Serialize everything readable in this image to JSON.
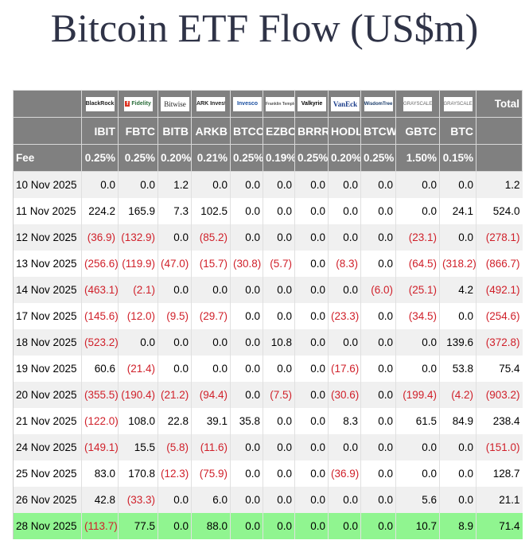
{
  "title": "Bitcoin ETF Flow (US$m)",
  "colors": {
    "header_bg": "#808080",
    "negative": "#d0202a",
    "highlight_row": "#90f590",
    "stripe": "#f0f0f0"
  },
  "issuers": [
    "BlackRock",
    "Fidelity",
    "Bitwise",
    "ARK Invest",
    "Invesco",
    "Franklin Templeton",
    "Valkyrie",
    "VanEck",
    "WisdomTree",
    "Grayscale",
    "Grayscale"
  ],
  "total_label": "Total",
  "fee_label": "Fee",
  "tickers": [
    "IBIT",
    "FBTC",
    "BITB",
    "ARKB",
    "BTCO",
    "EZBC",
    "BRRR",
    "HODL",
    "BTCW",
    "GBTC",
    "BTC"
  ],
  "fees": [
    "0.25%",
    "0.25%",
    "0.20%",
    "0.21%",
    "0.25%",
    "0.19%",
    "0.25%",
    "0.20%",
    "0.25%",
    "1.50%",
    "0.15%"
  ],
  "rows": [
    {
      "date": "10 Nov 2025",
      "values": [
        "0.0",
        "0.0",
        "1.2",
        "0.0",
        "0.0",
        "0.0",
        "0.0",
        "0.0",
        "0.0",
        "0.0",
        "0.0"
      ],
      "total": "1.2"
    },
    {
      "date": "11 Nov 2025",
      "values": [
        "224.2",
        "165.9",
        "7.3",
        "102.5",
        "0.0",
        "0.0",
        "0.0",
        "0.0",
        "0.0",
        "0.0",
        "24.1"
      ],
      "total": "524.0"
    },
    {
      "date": "12 Nov 2025",
      "values": [
        "(36.9)",
        "(132.9)",
        "0.0",
        "(85.2)",
        "0.0",
        "0.0",
        "0.0",
        "0.0",
        "0.0",
        "(23.1)",
        "0.0"
      ],
      "total": "(278.1)"
    },
    {
      "date": "13 Nov 2025",
      "values": [
        "(256.6)",
        "(119.9)",
        "(47.0)",
        "(15.7)",
        "(30.8)",
        "(5.7)",
        "0.0",
        "(8.3)",
        "0.0",
        "(64.5)",
        "(318.2)"
      ],
      "total": "(866.7)"
    },
    {
      "date": "14 Nov 2025",
      "values": [
        "(463.1)",
        "(2.1)",
        "0.0",
        "0.0",
        "0.0",
        "0.0",
        "0.0",
        "0.0",
        "(6.0)",
        "(25.1)",
        "4.2"
      ],
      "total": "(492.1)"
    },
    {
      "date": "17 Nov 2025",
      "values": [
        "(145.6)",
        "(12.0)",
        "(9.5)",
        "(29.7)",
        "0.0",
        "0.0",
        "0.0",
        "(23.3)",
        "0.0",
        "(34.5)",
        "0.0"
      ],
      "total": "(254.6)"
    },
    {
      "date": "18 Nov 2025",
      "values": [
        "(523.2)",
        "0.0",
        "0.0",
        "0.0",
        "0.0",
        "10.8",
        "0.0",
        "0.0",
        "0.0",
        "0.0",
        "139.6"
      ],
      "total": "(372.8)"
    },
    {
      "date": "19 Nov 2025",
      "values": [
        "60.6",
        "(21.4)",
        "0.0",
        "0.0",
        "0.0",
        "0.0",
        "0.0",
        "(17.6)",
        "0.0",
        "0.0",
        "53.8"
      ],
      "total": "75.4"
    },
    {
      "date": "20 Nov 2025",
      "values": [
        "(355.5)",
        "(190.4)",
        "(21.2)",
        "(94.4)",
        "0.0",
        "(7.5)",
        "0.0",
        "(30.6)",
        "0.0",
        "(199.4)",
        "(4.2)"
      ],
      "total": "(903.2)"
    },
    {
      "date": "21 Nov 2025",
      "values": [
        "(122.0)",
        "108.0",
        "22.8",
        "39.1",
        "35.8",
        "0.0",
        "0.0",
        "8.3",
        "0.0",
        "61.5",
        "84.9"
      ],
      "total": "238.4"
    },
    {
      "date": "24 Nov 2025",
      "values": [
        "(149.1)",
        "15.5",
        "(5.8)",
        "(11.6)",
        "0.0",
        "0.0",
        "0.0",
        "0.0",
        "0.0",
        "0.0",
        "0.0"
      ],
      "total": "(151.0)"
    },
    {
      "date": "25 Nov 2025",
      "values": [
        "83.0",
        "170.8",
        "(12.3)",
        "(75.9)",
        "0.0",
        "0.0",
        "0.0",
        "(36.9)",
        "0.0",
        "0.0",
        "0.0"
      ],
      "total": "128.7"
    },
    {
      "date": "26 Nov 2025",
      "values": [
        "42.8",
        "(33.3)",
        "0.0",
        "6.0",
        "0.0",
        "0.0",
        "0.0",
        "0.0",
        "0.0",
        "5.6",
        "0.0"
      ],
      "total": "21.1"
    },
    {
      "date": "28 Nov 2025",
      "values": [
        "(113.7)",
        "77.5",
        "0.0",
        "88.0",
        "0.0",
        "0.0",
        "0.0",
        "0.0",
        "0.0",
        "10.7",
        "8.9"
      ],
      "total": "71.4",
      "highlighted": true
    }
  ]
}
